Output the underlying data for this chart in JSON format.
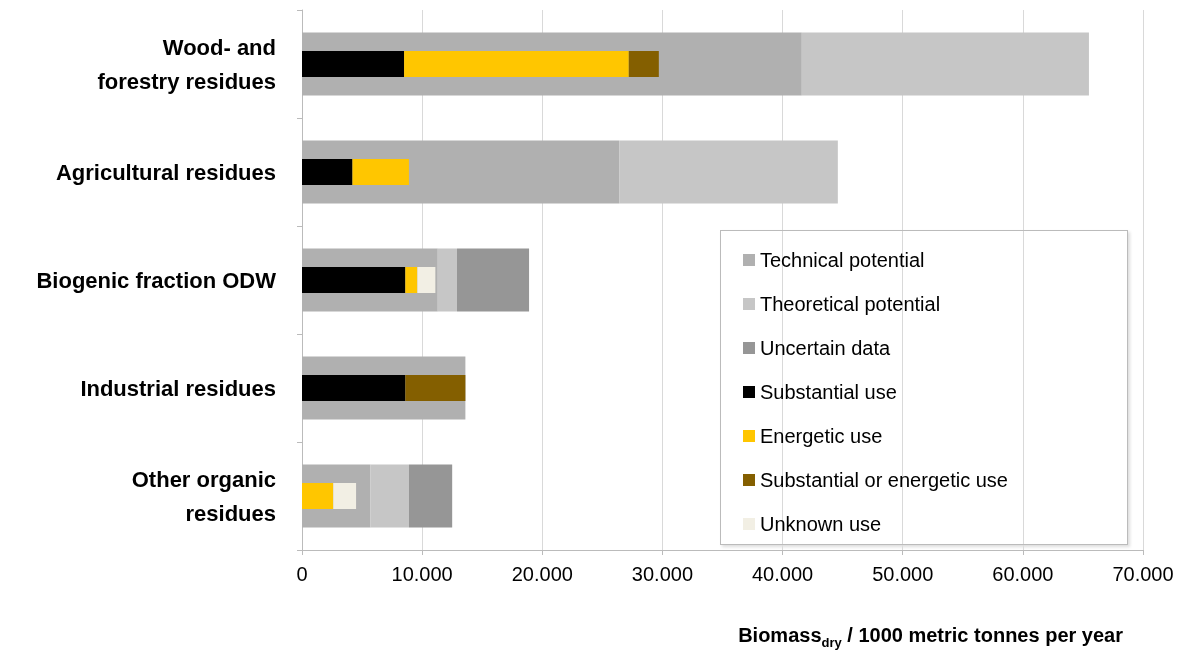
{
  "chart_data": [
    {
      "type": "bar",
      "orientation": "horizontal",
      "stacked": true,
      "categories": [
        "Wood- and forestry residues",
        "Agricultural residues",
        "Biogenic fraction ODW",
        "Industrial residues",
        "Other organic residues"
      ],
      "xlabel": "Biomass$_{dry}$ / 1000 metric tonnes per year",
      "xlim": [
        0,
        70000
      ],
      "xticks": [
        0,
        {
          "value": 10000,
          "label": "10.000"
        },
        {
          "value": 20000,
          "label": "20.000"
        },
        {
          "value": 30000,
          "label": "30.000"
        },
        {
          "value": 40000,
          "label": "40.000"
        },
        {
          "value": 50000,
          "label": "50.000"
        },
        {
          "value": 60000,
          "label": "60.000"
        },
        {
          "value": 70000,
          "label": "70.000"
        }
      ],
      "grid": "x",
      "legend": "bottom right",
      "series": [
        {
          "name": "Technical potential",
          "color": "#b0b0b0",
          "values": [
            41600,
            26400,
            11300,
            13600,
            5700
          ]
        },
        {
          "name": "Theoretical potential",
          "color": "#c6c6c6",
          "values": [
            23900,
            18200,
            1600,
            null,
            3200
          ]
        },
        {
          "name": "Uncertain data",
          "color": "#969696",
          "values": [
            null,
            null,
            6000,
            null,
            3600
          ]
        }
      ]
    },
    {
      "type": "bar",
      "orientation": "horizontal",
      "stacked": true,
      "categories": [
        null,
        null,
        null,
        null,
        null
      ],
      "xlim": [
        0,
        70000
      ],
      "tick_labels": false,
      "legend": "bottom right",
      "series": [
        {
          "name": "Substantial use",
          "color": "#000000",
          "values": [
            8500,
            4200,
            8600,
            8600,
            null
          ]
        },
        {
          "name": "Energetic use",
          "color": "#ffc600",
          "values": [
            18700,
            4700,
            1000,
            null,
            2600
          ]
        },
        {
          "name": "Substantial or energetic use",
          "color": "#845f00",
          "values": [
            2500,
            null,
            null,
            5000,
            null
          ]
        },
        {
          "name": "Unknown use",
          "color": "#f2efe4",
          "values": [
            null,
            null,
            1500,
            null,
            1900
          ]
        }
      ]
    }
  ]
}
